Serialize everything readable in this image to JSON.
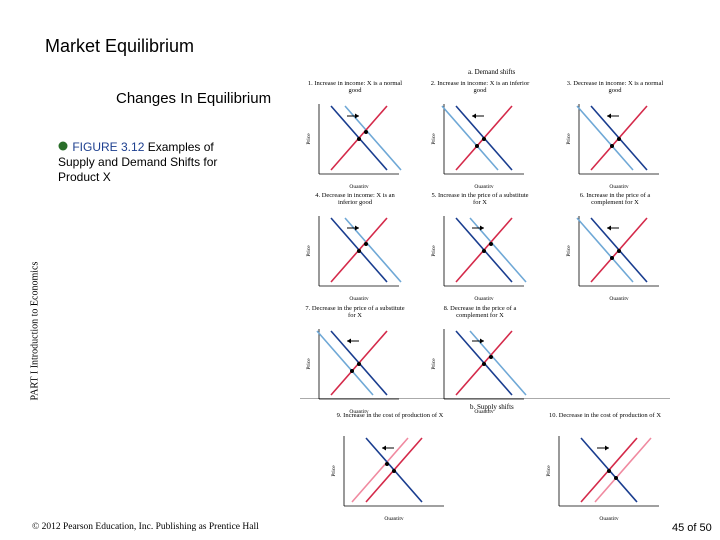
{
  "header": {
    "title": "Market Equilibrium",
    "subtitle": "Changes In Equilibrium"
  },
  "caption": {
    "figure": "FIGURE 3.12",
    "text": "Examples of Supply and Demand Shifts for Product X"
  },
  "side_label": "PART I Introduction to Economics",
  "figure": {
    "demand_heading": "a. Demand shifts",
    "supply_heading": "b. Supply shifts",
    "price_label": "Price",
    "quantity_label": "Quantity",
    "panels": [
      {
        "title": "1. Increase in income: X is a normal good"
      },
      {
        "title": "2. Increase in income: X is an inferior good"
      },
      {
        "title": "3. Decrease in income: X is a normal good"
      },
      {
        "title": "4. Decrease in income: X is an inferior good"
      },
      {
        "title": "5. Increase in the price of a substitute for X"
      },
      {
        "title": "6. Increase in the price of a complement for X"
      },
      {
        "title": "7. Decrease in the price of a substitute for X"
      },
      {
        "title": "8. Decrease in the price of a complement for X"
      },
      {
        "title": "9. Increase in the cost of production of X"
      },
      {
        "title": "10. Decrease in the cost of production of X"
      }
    ]
  },
  "footer": {
    "copyright": "© 2012 Pearson Education, Inc. Publishing as Prentice Hall",
    "page": "45 of 50"
  }
}
